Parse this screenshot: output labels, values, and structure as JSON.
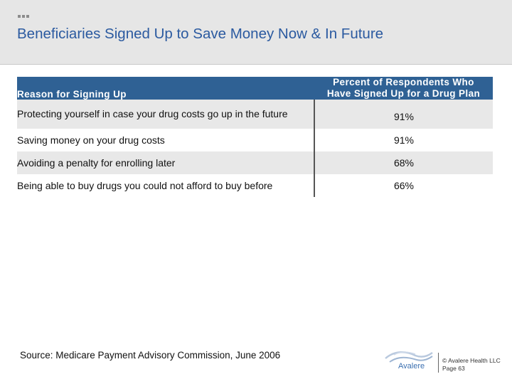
{
  "slide": {
    "title": "Beneficiaries Signed Up to Save Money Now & In Future"
  },
  "table": {
    "header_reason": "Reason for Signing Up",
    "header_pct_line1": "Percent of Respondents Who",
    "header_pct_line2": "Have Signed Up for a Drug Plan",
    "rows": [
      {
        "reason": "Protecting yourself in case your drug costs go up in the future",
        "percent": "91%"
      },
      {
        "reason": "Saving money on your drug costs",
        "percent": "91%"
      },
      {
        "reason": "Avoiding a penalty for enrolling later",
        "percent": "68%"
      },
      {
        "reason": "Being able to buy drugs you could not afford to buy before",
        "percent": "66%"
      }
    ]
  },
  "footer": {
    "source": "Source:  Medicare Payment Advisory Commission, June 2006",
    "logo_text": "Avalere",
    "copyright_line1": "© Avalere Health LLC",
    "copyright_line2": "Page 63"
  },
  "colors": {
    "title": "#2b5aa0",
    "table_header": "#2f6194",
    "row_shade": "#e8e8e8",
    "header_band": "#e6e6e6"
  }
}
